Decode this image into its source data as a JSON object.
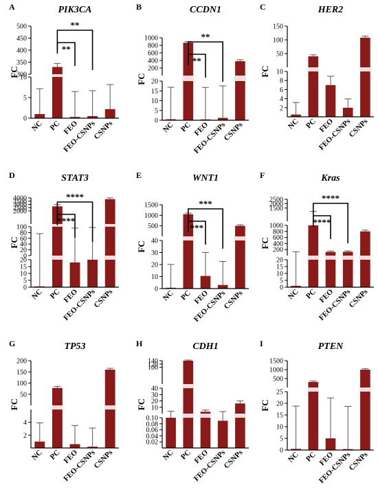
{
  "figure": {
    "bar_color": "#8b1a1a",
    "break_color": "#f2dede",
    "categories": [
      "NC",
      "PC",
      "FEO",
      "FEO-CSNPs",
      "CSNPs"
    ],
    "ylabel": "FC"
  },
  "chart_data": [
    {
      "letter": "A",
      "title": "PIK3CA",
      "type": "bar",
      "categories": [
        "NC",
        "PC",
        "FEO",
        "FEO-CSNPs",
        "CSNPs"
      ],
      "values": [
        1,
        330,
        0.3,
        0.5,
        2.2
      ],
      "errors": [
        6,
        12,
        6,
        6,
        5.8
      ],
      "ylabel": "FC",
      "segments": [
        {
          "range": [
            0,
            10
          ],
          "ticks": [
            "0",
            "5",
            "10"
          ]
        },
        {
          "range": [
            300,
            500
          ],
          "ticks": [
            "300",
            "350",
            "400",
            "450",
            "500"
          ]
        }
      ],
      "significance": [
        {
          "from": 1,
          "to": 2,
          "label": "**"
        },
        {
          "from": 1,
          "to": 3,
          "label": "**"
        }
      ]
    },
    {
      "letter": "B",
      "title": "CCDN1",
      "type": "bar",
      "categories": [
        "NC",
        "PC",
        "FEO",
        "FEO-CSNPs",
        "CSNPs"
      ],
      "values": [
        0.5,
        870,
        0.4,
        1.2,
        380
      ],
      "errors": [
        16,
        15,
        16,
        16,
        20
      ],
      "ylabel": "FC",
      "segments": [
        {
          "range": [
            0,
            20
          ],
          "ticks": [
            "0",
            "5",
            "10",
            "15",
            "20"
          ]
        },
        {
          "range": [
            0,
            1000
          ],
          "ticks": [
            "200",
            "400",
            "600",
            "800",
            "1000"
          ]
        }
      ],
      "significance": [
        {
          "from": 1,
          "to": 2,
          "label": "**"
        },
        {
          "from": 1,
          "to": 3,
          "label": "**"
        }
      ]
    },
    {
      "letter": "C",
      "title": "HER2",
      "type": "bar",
      "categories": [
        "NC",
        "PC",
        "FEO",
        "FEO-CSNPs",
        "CSNPs"
      ],
      "values": [
        0.5,
        40,
        7,
        2,
        108
      ],
      "errors": [
        2.5,
        3,
        1.8,
        1.8,
        3
      ],
      "ylabel": "FC",
      "segments": [
        {
          "range": [
            0,
            10
          ],
          "ticks": [
            "2",
            "4",
            "6",
            "8",
            "10"
          ]
        },
        {
          "range": [
            0,
            150
          ],
          "ticks": [
            "50",
            "100",
            "150"
          ]
        }
      ],
      "significance": []
    },
    {
      "letter": "D",
      "title": "STAT3",
      "type": "bar",
      "categories": [
        "NC",
        "PC",
        "FEO",
        "FEO-CSNPs",
        "CSNPs"
      ],
      "values": [
        0.5,
        2700,
        18,
        20,
        3800
      ],
      "errors": [
        73,
        150,
        75,
        75,
        100
      ],
      "ylabel": "FC",
      "segments": [
        {
          "range": [
            0,
            20
          ],
          "ticks": [
            "0",
            "5",
            "10",
            "15",
            "20"
          ]
        },
        {
          "range": [
            0,
            100
          ],
          "ticks": [
            "0",
            "20",
            "40",
            "60",
            "80",
            "100"
          ]
        },
        {
          "range": [
            0,
            4000
          ],
          "ticks": [
            "2000",
            "2500",
            "3000",
            "3500",
            "4000"
          ]
        }
      ],
      "significance": [
        {
          "from": 1,
          "to": 2,
          "label": "****"
        },
        {
          "from": 1,
          "to": 3,
          "label": "****"
        }
      ]
    },
    {
      "letter": "E",
      "title": "WNT1",
      "type": "bar",
      "categories": [
        "NC",
        "PC",
        "FEO",
        "FEO-CSNPs",
        "CSNPs"
      ],
      "values": [
        0.5,
        1050,
        10.5,
        3,
        500
      ],
      "errors": [
        19,
        20,
        19,
        19,
        15
      ],
      "ylabel": "FC",
      "segments": [
        {
          "range": [
            0,
            40
          ],
          "ticks": [
            "0",
            "10",
            "20",
            "30",
            "40"
          ]
        },
        {
          "range": [
            0,
            1500
          ],
          "ticks": [
            "500",
            "1000",
            "1500"
          ]
        }
      ],
      "significance": [
        {
          "from": 1,
          "to": 2,
          "label": "***"
        },
        {
          "from": 1,
          "to": 3,
          "label": "***"
        }
      ]
    },
    {
      "letter": "F",
      "title": "Kras",
      "type": "bar",
      "categories": [
        "NC",
        "PC",
        "FEO",
        "FEO-CSNPs",
        "CSNPs"
      ],
      "values": [
        1,
        1000,
        120,
        125,
        800
      ],
      "errors": [
        100,
        40,
        8,
        8,
        20
      ],
      "ylabel": "FC",
      "segments": [
        {
          "range": [
            0,
            20
          ],
          "ticks": [
            "0",
            "5",
            "10",
            "15",
            "20"
          ]
        },
        {
          "range": [
            0,
            1000
          ],
          "ticks": [
            "200",
            "400",
            "600",
            "800",
            "1000"
          ]
        },
        {
          "range": [
            0,
            2500
          ],
          "ticks": [
            "1500",
            "2000",
            "2500"
          ]
        }
      ],
      "significance": [
        {
          "from": 1,
          "to": 2,
          "label": "****"
        },
        {
          "from": 1,
          "to": 3,
          "label": "****"
        }
      ]
    },
    {
      "letter": "G",
      "title": "TP53",
      "type": "bar",
      "categories": [
        "NC",
        "PC",
        "FEO",
        "FEO-CSNPs",
        "CSNPs"
      ],
      "values": [
        1,
        78,
        0.6,
        0.2,
        160
      ],
      "errors": [
        2.8,
        4,
        2.8,
        2.8,
        3
      ],
      "ylabel": "FC",
      "segments": [
        {
          "range": [
            0,
            6
          ],
          "ticks": [
            "2",
            "4"
          ]
        },
        {
          "range": [
            0,
            200
          ],
          "ticks": [
            "50",
            "100",
            "150",
            "200"
          ]
        }
      ],
      "significance": []
    },
    {
      "letter": "H",
      "title": "CDH1",
      "type": "bar",
      "categories": [
        "NC",
        "PC",
        "FEO",
        "FEO-CSNPs",
        "CSNPs"
      ],
      "values": [
        0.1,
        140,
        3,
        0.09,
        16
      ],
      "errors": [
        2.5,
        3,
        1.5,
        2,
        3
      ],
      "ylabel": "FC",
      "segments": [
        {
          "range": [
            0,
            0.1
          ],
          "ticks": [
            "0.02",
            "0.04",
            "0.06",
            "0.08",
            "0.10"
          ]
        },
        {
          "range": [
            0,
            40
          ],
          "ticks": [
            "10",
            "20",
            "30",
            "40"
          ]
        },
        {
          "range": [
            0,
            140
          ],
          "ticks": [
            "100",
            "120",
            "140"
          ]
        }
      ],
      "significance": []
    },
    {
      "letter": "I",
      "title": "PTEN",
      "type": "bar",
      "categories": [
        "NC",
        "PC",
        "FEO",
        "FEO-CSNPs",
        "CSNPs"
      ],
      "values": [
        0.5,
        310,
        5,
        0.4,
        1000
      ],
      "errors": [
        18,
        15,
        17,
        18,
        15
      ],
      "ylabel": "FC",
      "segments": [
        {
          "range": [
            0,
            25
          ],
          "ticks": [
            "0",
            "5",
            "10",
            "15",
            "20",
            "25"
          ]
        },
        {
          "range": [
            0,
            1500
          ],
          "ticks": [
            "500",
            "1000",
            "1500"
          ]
        }
      ],
      "significance": []
    }
  ]
}
